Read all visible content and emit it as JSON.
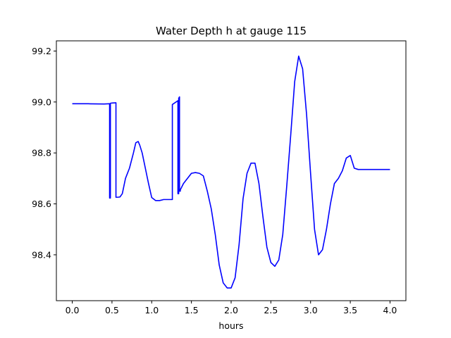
{
  "chart_data": {
    "type": "line",
    "title": "Water Depth h at gauge 115",
    "xlabel": "hours",
    "ylabel": "",
    "xlim": [
      -0.2,
      4.2
    ],
    "ylim": [
      98.22,
      99.24
    ],
    "xticks": [
      0.0,
      0.5,
      1.0,
      1.5,
      2.0,
      2.5,
      3.0,
      3.5,
      4.0
    ],
    "xtick_labels": [
      "0.0",
      "0.5",
      "1.0",
      "1.5",
      "2.0",
      "2.5",
      "3.0",
      "3.5",
      "4.0"
    ],
    "yticks": [
      98.4,
      98.6,
      98.8,
      99.0,
      99.2
    ],
    "ytick_labels": [
      "98.4",
      "98.6",
      "98.8",
      "99.0",
      "99.2"
    ],
    "grid": false,
    "series": [
      {
        "color": "#0000ff",
        "x": [
          0.0,
          0.2,
          0.4,
          0.47,
          0.47,
          0.48,
          0.48,
          0.5,
          0.55,
          0.55,
          0.57,
          0.6,
          0.63,
          0.67,
          0.72,
          0.77,
          0.8,
          0.83,
          0.85,
          0.88,
          0.92,
          0.96,
          1.0,
          1.05,
          1.1,
          1.15,
          1.2,
          1.25,
          1.26,
          1.26,
          1.33,
          1.33,
          1.34,
          1.34,
          1.35,
          1.35,
          1.36,
          1.36,
          1.4,
          1.45,
          1.5,
          1.55,
          1.6,
          1.65,
          1.7,
          1.75,
          1.8,
          1.85,
          1.9,
          1.95,
          2.0,
          2.05,
          2.1,
          2.15,
          2.2,
          2.25,
          2.3,
          2.35,
          2.4,
          2.45,
          2.5,
          2.55,
          2.6,
          2.65,
          2.7,
          2.75,
          2.8,
          2.85,
          2.9,
          2.95,
          3.0,
          3.05,
          3.1,
          3.15,
          3.2,
          3.25,
          3.3,
          3.35,
          3.4,
          3.45,
          3.5,
          3.55,
          3.6,
          3.65,
          3.7,
          3.75,
          3.8,
          3.85,
          3.9,
          3.95,
          4.0
        ],
        "y": [
          98.993,
          98.993,
          98.992,
          98.993,
          98.623,
          98.623,
          98.995,
          98.996,
          98.997,
          98.626,
          98.626,
          98.627,
          98.64,
          98.7,
          98.74,
          98.8,
          98.84,
          98.845,
          98.83,
          98.8,
          98.74,
          98.68,
          98.625,
          98.613,
          98.613,
          98.617,
          98.617,
          98.617,
          98.617,
          98.99,
          99.005,
          98.64,
          98.64,
          99.015,
          99.02,
          98.65,
          98.65,
          98.655,
          98.68,
          98.7,
          98.72,
          98.723,
          98.72,
          98.71,
          98.65,
          98.58,
          98.48,
          98.36,
          98.29,
          98.27,
          98.27,
          98.31,
          98.44,
          98.62,
          98.72,
          98.76,
          98.76,
          98.68,
          98.55,
          98.43,
          98.37,
          98.355,
          98.38,
          98.48,
          98.67,
          98.87,
          99.08,
          99.18,
          99.13,
          98.95,
          98.72,
          98.5,
          98.4,
          98.42,
          98.5,
          98.6,
          98.68,
          98.7,
          98.73,
          98.78,
          98.79,
          98.74,
          98.735,
          98.735,
          98.735,
          98.735,
          98.735,
          98.735,
          98.735,
          98.735,
          98.735
        ]
      }
    ]
  }
}
